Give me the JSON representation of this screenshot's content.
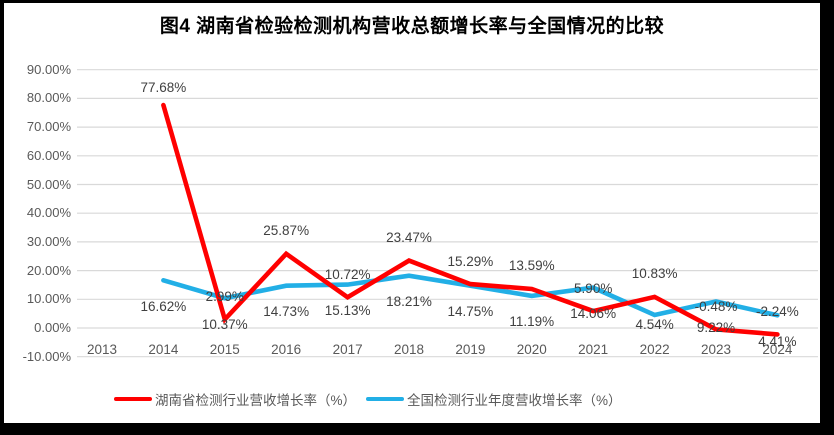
{
  "title": "图4 湖南省检验检测机构营收总额增长率与全国情况的比较",
  "chart_data": {
    "type": "line",
    "categories": [
      "2013",
      "2014",
      "2015",
      "2016",
      "2017",
      "2018",
      "2019",
      "2020",
      "2021",
      "2022",
      "2023",
      "2024"
    ],
    "series": [
      {
        "name": "湖南省检测行业营收增长率（%）",
        "color": "#FF0000",
        "values": [
          null,
          77.68,
          2.99,
          25.87,
          10.72,
          23.47,
          15.29,
          13.59,
          5.9,
          10.83,
          -0.48,
          -2.24
        ],
        "labels": [
          "",
          "77.68%",
          "2.99%",
          "25.87%",
          "10.72%",
          "23.47%",
          "15.29%",
          "13.59%",
          "5.90%",
          "10.83%",
          "-0.48%",
          "-2.24%"
        ]
      },
      {
        "name": "全国检测行业年度营收增长率（%）",
        "color": "#22AFE6",
        "values": [
          null,
          16.62,
          10.37,
          14.73,
          15.13,
          18.21,
          14.75,
          11.19,
          14.06,
          4.54,
          9.22,
          4.41
        ],
        "labels": [
          "",
          "16.62%",
          "10.37%",
          "14.73%",
          "15.13%",
          "18.21%",
          "14.75%",
          "11.19%",
          "14.06%",
          "4.54%",
          "9.22%",
          "4.41%"
        ]
      }
    ],
    "y_ticks": [
      "90.00%",
      "80.00%",
      "70.00%",
      "60.00%",
      "50.00%",
      "40.00%",
      "30.00%",
      "20.00%",
      "10.00%",
      "0.00%",
      "-10.00%"
    ],
    "ylim": [
      -10,
      90
    ],
    "grid": true,
    "legend_position": "bottom"
  },
  "colors": {
    "grid": "#D9D9D9",
    "axis_text": "#595959",
    "label_text": "#404040",
    "title_text": "#000000"
  }
}
